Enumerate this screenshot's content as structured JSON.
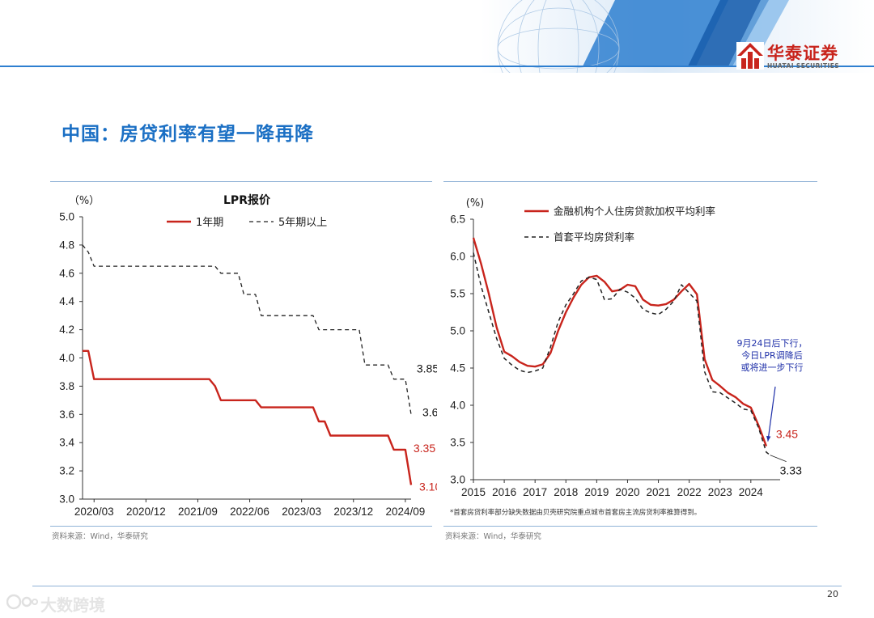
{
  "header": {
    "logo_cn": "华泰证券",
    "logo_en": "HUATAI SECURITIES",
    "brand_color": "#c8241c",
    "accent_color": "#1a6fc4"
  },
  "page": {
    "title": "中国：房贷利率有望一降再降",
    "number": "20",
    "watermark": "大数跨境"
  },
  "chart_data": [
    {
      "type": "line",
      "title": "LPR报价",
      "ylabel": "（%）",
      "ylim": [
        3.0,
        5.0
      ],
      "yticks": [
        "5.0",
        "4.8",
        "4.6",
        "4.4",
        "4.2",
        "4.0",
        "3.8",
        "3.6",
        "3.4",
        "3.2",
        "3.0"
      ],
      "xticks": [
        "2020/03",
        "2020/12",
        "2021/09",
        "2022/06",
        "2023/03",
        "2023/12",
        "2024/09"
      ],
      "x_start": "2020/01",
      "series": [
        {
          "name": "1年期",
          "color": "#c8241c",
          "style": "solid",
          "values": [
            [
              "2020/01",
              4.05
            ],
            [
              "2020/02",
              4.05
            ],
            [
              "2020/03",
              3.85
            ],
            [
              "2021/11",
              3.85
            ],
            [
              "2021/12",
              3.8
            ],
            [
              "2022/01",
              3.7
            ],
            [
              "2022/07",
              3.7
            ],
            [
              "2022/08",
              3.65
            ],
            [
              "2023/05",
              3.65
            ],
            [
              "2023/06",
              3.55
            ],
            [
              "2023/07",
              3.55
            ],
            [
              "2023/08",
              3.45
            ],
            [
              "2024/06",
              3.45
            ],
            [
              "2024/07",
              3.35
            ],
            [
              "2024/09",
              3.35
            ],
            [
              "2024/10",
              3.1
            ]
          ]
        },
        {
          "name": "5年期以上",
          "color": "#222222",
          "style": "dashed",
          "values": [
            [
              "2020/01",
              4.8
            ],
            [
              "2020/02",
              4.75
            ],
            [
              "2020/03",
              4.65
            ],
            [
              "2021/11",
              4.65
            ],
            [
              "2021/12",
              4.65
            ],
            [
              "2022/01",
              4.6
            ],
            [
              "2022/04",
              4.6
            ],
            [
              "2022/05",
              4.45
            ],
            [
              "2022/07",
              4.45
            ],
            [
              "2022/08",
              4.3
            ],
            [
              "2023/05",
              4.3
            ],
            [
              "2023/06",
              4.2
            ],
            [
              "2024/01",
              4.2
            ],
            [
              "2024/02",
              3.95
            ],
            [
              "2024/06",
              3.95
            ],
            [
              "2024/07",
              3.85
            ],
            [
              "2024/09",
              3.85
            ],
            [
              "2024/10",
              3.6
            ]
          ]
        }
      ],
      "end_labels": [
        {
          "text": "3.85",
          "series": "5年期以上",
          "at": [
            "2024/09",
            3.85
          ]
        },
        {
          "text": "3.60",
          "series": "5年期以上",
          "at": [
            "2024/10",
            3.6
          ]
        },
        {
          "text": "3.35",
          "series": "1年期",
          "at": [
            "2024/09",
            3.35
          ]
        },
        {
          "text": "3.10",
          "series": "1年期",
          "at": [
            "2024/10",
            3.1
          ]
        }
      ],
      "source": "资料来源：Wind，华泰研究"
    },
    {
      "type": "line",
      "ylabel": "(%)",
      "ylim": [
        3.0,
        6.5
      ],
      "yticks": [
        "6.5",
        "6.0",
        "5.5",
        "5.0",
        "4.5",
        "4.0",
        "3.5",
        "3.0"
      ],
      "xticks": [
        "2015",
        "2016",
        "2017",
        "2018",
        "2019",
        "2020",
        "2021",
        "2022",
        "2023",
        "2024"
      ],
      "series": [
        {
          "name": "金融机构个人住房贷款加权平均利率",
          "color": "#c8241c",
          "style": "solid",
          "values": [
            [
              2015.0,
              6.25
            ],
            [
              2015.25,
              5.9
            ],
            [
              2015.5,
              5.5
            ],
            [
              2015.75,
              5.05
            ],
            [
              2016.0,
              4.72
            ],
            [
              2016.25,
              4.66
            ],
            [
              2016.5,
              4.58
            ],
            [
              2016.75,
              4.53
            ],
            [
              2017.0,
              4.52
            ],
            [
              2017.25,
              4.55
            ],
            [
              2017.5,
              4.7
            ],
            [
              2017.75,
              5.0
            ],
            [
              2018.0,
              5.25
            ],
            [
              2018.25,
              5.45
            ],
            [
              2018.5,
              5.62
            ],
            [
              2018.75,
              5.72
            ],
            [
              2019.0,
              5.74
            ],
            [
              2019.25,
              5.66
            ],
            [
              2019.5,
              5.53
            ],
            [
              2019.75,
              5.55
            ],
            [
              2020.0,
              5.62
            ],
            [
              2020.25,
              5.6
            ],
            [
              2020.5,
              5.42
            ],
            [
              2020.75,
              5.35
            ],
            [
              2021.0,
              5.34
            ],
            [
              2021.25,
              5.36
            ],
            [
              2021.5,
              5.42
            ],
            [
              2021.75,
              5.53
            ],
            [
              2022.0,
              5.63
            ],
            [
              2022.25,
              5.49
            ],
            [
              2022.5,
              4.62
            ],
            [
              2022.75,
              4.34
            ],
            [
              2023.0,
              4.26
            ],
            [
              2023.25,
              4.17
            ],
            [
              2023.5,
              4.11
            ],
            [
              2023.75,
              4.02
            ],
            [
              2024.0,
              3.97
            ],
            [
              2024.25,
              3.73
            ],
            [
              2024.5,
              3.45
            ]
          ]
        },
        {
          "name": "首套平均房贷利率",
          "color": "#222222",
          "style": "dashed",
          "values": [
            [
              2015.0,
              6.05
            ],
            [
              2015.25,
              5.6
            ],
            [
              2015.5,
              5.25
            ],
            [
              2015.75,
              4.9
            ],
            [
              2016.0,
              4.63
            ],
            [
              2016.25,
              4.54
            ],
            [
              2016.5,
              4.47
            ],
            [
              2016.75,
              4.44
            ],
            [
              2017.0,
              4.46
            ],
            [
              2017.25,
              4.5
            ],
            [
              2017.5,
              4.78
            ],
            [
              2017.75,
              5.12
            ],
            [
              2018.0,
              5.35
            ],
            [
              2018.25,
              5.5
            ],
            [
              2018.5,
              5.67
            ],
            [
              2018.75,
              5.72
            ],
            [
              2019.0,
              5.69
            ],
            [
              2019.25,
              5.42
            ],
            [
              2019.5,
              5.43
            ],
            [
              2019.75,
              5.56
            ],
            [
              2020.0,
              5.52
            ],
            [
              2020.25,
              5.44
            ],
            [
              2020.5,
              5.29
            ],
            [
              2020.75,
              5.24
            ],
            [
              2021.0,
              5.22
            ],
            [
              2021.25,
              5.29
            ],
            [
              2021.5,
              5.4
            ],
            [
              2021.75,
              5.62
            ],
            [
              2022.0,
              5.51
            ],
            [
              2022.25,
              5.4
            ],
            [
              2022.5,
              4.45
            ],
            [
              2022.75,
              4.18
            ],
            [
              2023.0,
              4.17
            ],
            [
              2023.25,
              4.1
            ],
            [
              2023.5,
              4.03
            ],
            [
              2023.75,
              3.95
            ],
            [
              2024.0,
              3.93
            ],
            [
              2024.25,
              3.7
            ],
            [
              2024.5,
              3.37
            ],
            [
              2024.625,
              3.33
            ]
          ]
        }
      ],
      "end_labels": [
        {
          "text": "3.45",
          "series": "金融机构个人住房贷款加权平均利率"
        },
        {
          "text": "3.33",
          "series": "首套平均房贷利率"
        }
      ],
      "annotation": {
        "lines": [
          "9月24日后下行，",
          "今日LPR调降后",
          "或将进一步下行"
        ],
        "color": "#1e2fa8"
      },
      "footnote": "*首套房贷利率部分缺失数据由贝壳研究院重点城市首套房主流房贷利率推算得到。",
      "source": "资料来源：Wind，华泰研究"
    }
  ]
}
